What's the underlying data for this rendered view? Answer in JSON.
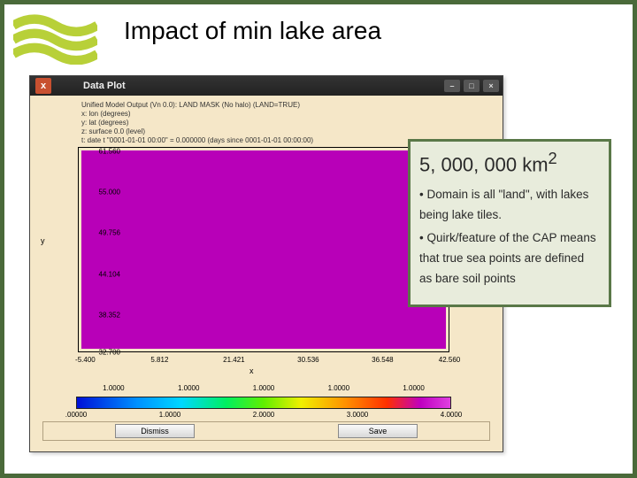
{
  "slide": {
    "title": "Impact of min lake area",
    "border_color": "#4a6a3a",
    "logo_color": "#b8d038"
  },
  "window": {
    "titlebar": {
      "icon_glyph": "x",
      "title": "Data Plot",
      "bg_gradient": [
        "#333333",
        "#222222"
      ]
    },
    "background": "#f5e7c8",
    "meta_lines": "Unified Model Output (Vn 0.0): LAND MASK (No halo) (LAND=TRUE)\nx: lon (degrees)\ny: lat (degrees)\nz: surface 0.0 (level)\nt: date t \"0001-01-01 00:00\" = 0.000000 (days since 0001-01-01 00:00:00)",
    "axis": {
      "xlabel": "x",
      "ylabel": "y",
      "yticks": [
        {
          "pos": 0.02,
          "label": "61.560"
        },
        {
          "pos": 0.22,
          "label": "55.000"
        },
        {
          "pos": 0.42,
          "label": "49.756"
        },
        {
          "pos": 0.62,
          "label": "44.104"
        },
        {
          "pos": 0.82,
          "label": "38.352"
        },
        {
          "pos": 1.0,
          "label": "32.700"
        }
      ],
      "xticks": [
        {
          "pos": 0.02,
          "label": "-5.400"
        },
        {
          "pos": 0.22,
          "label": "5.812"
        },
        {
          "pos": 0.42,
          "label": "21.421"
        },
        {
          "pos": 0.62,
          "label": "30.536"
        },
        {
          "pos": 0.82,
          "label": "36.548"
        },
        {
          "pos": 1.0,
          "label": "42.560"
        }
      ],
      "fill_color": "#b800b8"
    },
    "colorbar": {
      "top_ticks": [
        {
          "pos": 0.1,
          "label": "1.0000"
        },
        {
          "pos": 0.3,
          "label": "1.0000"
        },
        {
          "pos": 0.5,
          "label": "1.0000"
        },
        {
          "pos": 0.7,
          "label": "1.0000"
        },
        {
          "pos": 0.9,
          "label": "1.0000"
        }
      ],
      "bottom_ticks": [
        {
          "pos": 0.0,
          "label": ".00000"
        },
        {
          "pos": 0.25,
          "label": "1.0000"
        },
        {
          "pos": 0.5,
          "label": "2.0000"
        },
        {
          "pos": 0.75,
          "label": "3.0000"
        },
        {
          "pos": 1.0,
          "label": "4.0000"
        }
      ]
    },
    "buttons": {
      "dismiss": "Dismiss",
      "save": "Save"
    }
  },
  "callout": {
    "title_html": "5, 000, 000 km²",
    "bullets": [
      "• Domain is all \"land\", with lakes being lake tiles.",
      "• Quirk/feature of the CAP means that true sea points are defined as bare soil points"
    ],
    "bg": "#e8ecdc",
    "border": "#5a7848"
  }
}
